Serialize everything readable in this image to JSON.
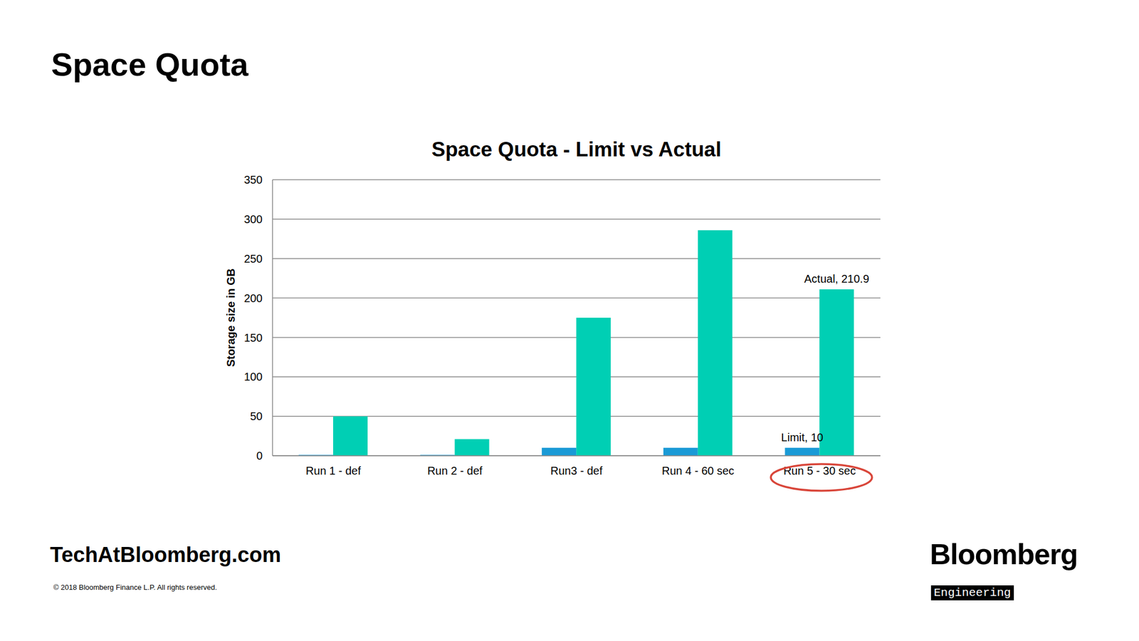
{
  "slide_title": "Space Quota",
  "chart_data": {
    "type": "bar",
    "title": "Space Quota - Limit vs Actual",
    "y_label": "Storage size in GB",
    "categories": [
      "Run 1 - def",
      "Run 2 - def",
      "Run3 - def",
      "Run 4 - 60 sec",
      "Run 5 - 30 sec"
    ],
    "series": [
      {
        "name": "Limit",
        "color": "#1a9ad6",
        "values": [
          1,
          1,
          10,
          10,
          10
        ]
      },
      {
        "name": "Actual",
        "color": "#00cfb4",
        "values": [
          50,
          21,
          175,
          286,
          210.9
        ]
      }
    ],
    "ylim": [
      0,
      350
    ],
    "yticks": [
      0,
      50,
      100,
      150,
      200,
      250,
      300,
      350
    ],
    "grid": true,
    "annotations": [
      {
        "series": "Limit",
        "category": "Run 5 - 30 sec",
        "text": "Limit, 10"
      },
      {
        "series": "Actual",
        "category": "Run 5 - 30 sec",
        "text": "Actual, 210.9"
      }
    ]
  },
  "footer": {
    "site": "TechAtBloomberg.com",
    "copyright": "© 2018 Bloomberg Finance L.P. All rights reserved.",
    "logo": "Bloomberg",
    "logo_tag": "Engineering"
  }
}
